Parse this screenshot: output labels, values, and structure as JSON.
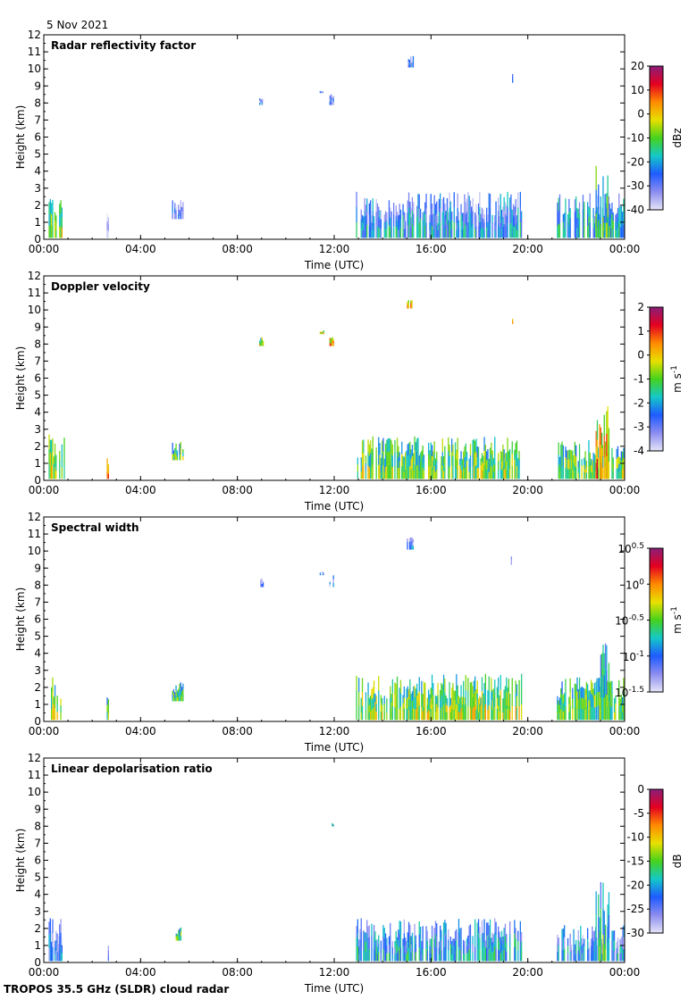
{
  "date": "5 Nov 2021",
  "footer": "TROPOS 35.5 GHz (SLDR) cloud radar",
  "colors": {
    "colormap": [
      "#8a1e7a",
      "#e40020",
      "#ff8a00",
      "#e8e000",
      "#46d21c",
      "#14c8c8",
      "#1e5cff",
      "#8c8cf0",
      "#e4e4f8"
    ],
    "clear_air": "#cfcfd8",
    "frame": "#000000"
  },
  "chart_data": [
    {
      "type": "heatmap",
      "title": "Radar reflectivity factor",
      "xlabel": "Time (UTC)",
      "ylabel": "Height (km)",
      "xticks": [
        "00:00",
        "04:00",
        "08:00",
        "12:00",
        "16:00",
        "20:00",
        "00:00"
      ],
      "xlim_hours": [
        0,
        24
      ],
      "ylim": [
        0,
        12
      ],
      "yticks": [
        0,
        1,
        2,
        3,
        4,
        5,
        6,
        7,
        8,
        9,
        10,
        11,
        12
      ],
      "colorbar": {
        "unit": "dBz",
        "ticks": [
          "20",
          "10",
          "0",
          "-10",
          "-20",
          "-30",
          "-40"
        ],
        "range": [
          -40,
          20
        ]
      },
      "features": [
        {
          "t0": 0.2,
          "t1": 0.8,
          "h0": 0.1,
          "h1": 2.6,
          "value": 0.45
        },
        {
          "t0": 2.6,
          "t1": 2.7,
          "h0": 0.1,
          "h1": 1.6,
          "value": 0.9
        },
        {
          "t0": 5.3,
          "t1": 5.8,
          "h0": 1.2,
          "h1": 2.3,
          "value": 0.8
        },
        {
          "t0": 8.9,
          "t1": 9.1,
          "h0": 7.9,
          "h1": 8.5,
          "value": 0.85
        },
        {
          "t0": 11.4,
          "t1": 11.6,
          "h0": 8.6,
          "h1": 8.8,
          "value": 0.85
        },
        {
          "t0": 11.8,
          "t1": 12.0,
          "h0": 7.9,
          "h1": 8.6,
          "value": 0.82
        },
        {
          "t0": 12.9,
          "t1": 19.8,
          "h0": 0.1,
          "h1": 2.8,
          "value": 0.72
        },
        {
          "t0": 15.0,
          "t1": 15.3,
          "h0": 10.1,
          "h1": 10.8,
          "value": 0.82
        },
        {
          "t0": 19.3,
          "t1": 19.4,
          "h0": 9.2,
          "h1": 9.7,
          "value": 0.9
        },
        {
          "t0": 21.2,
          "t1": 24.0,
          "h0": 0.1,
          "h1": 2.8,
          "value": 0.65
        },
        {
          "t0": 22.8,
          "t1": 23.4,
          "h0": 0.1,
          "h1": 4.9,
          "value": 0.55
        }
      ]
    },
    {
      "type": "heatmap",
      "title": "Doppler velocity",
      "xlabel": "Time (UTC)",
      "ylabel": "Height (km)",
      "xticks": [
        "00:00",
        "04:00",
        "08:00",
        "12:00",
        "16:00",
        "20:00",
        "00:00"
      ],
      "xlim_hours": [
        0,
        24
      ],
      "ylim": [
        0,
        12
      ],
      "yticks": [
        0,
        1,
        2,
        3,
        4,
        5,
        6,
        7,
        8,
        9,
        10,
        11,
        12
      ],
      "colorbar": {
        "unit": "m s-1",
        "ticks": [
          "2",
          "1",
          "0",
          "-1",
          "-2",
          "-3",
          "-4"
        ],
        "range": [
          -4,
          2
        ]
      },
      "features": [
        {
          "t0": 0.2,
          "t1": 0.9,
          "h0": 0.1,
          "h1": 2.8,
          "value": 0.45
        },
        {
          "t0": 2.6,
          "t1": 2.7,
          "h0": 0.1,
          "h1": 1.6,
          "value": 0.3
        },
        {
          "t0": 5.3,
          "t1": 5.8,
          "h0": 1.2,
          "h1": 2.3,
          "value": 0.55
        },
        {
          "t0": 8.9,
          "t1": 9.1,
          "h0": 7.9,
          "h1": 8.5,
          "value": 0.45
        },
        {
          "t0": 11.4,
          "t1": 11.6,
          "h0": 8.6,
          "h1": 8.8,
          "value": 0.4
        },
        {
          "t0": 11.8,
          "t1": 12.0,
          "h0": 7.9,
          "h1": 8.6,
          "value": 0.3
        },
        {
          "t0": 12.9,
          "t1": 19.8,
          "h0": 0.1,
          "h1": 2.6,
          "value": 0.5
        },
        {
          "t0": 15.0,
          "t1": 15.3,
          "h0": 10.1,
          "h1": 10.8,
          "value": 0.25
        },
        {
          "t0": 19.3,
          "t1": 19.4,
          "h0": 9.2,
          "h1": 9.7,
          "value": 0.25
        },
        {
          "t0": 21.2,
          "t1": 24.0,
          "h0": 0.1,
          "h1": 2.4,
          "value": 0.5
        },
        {
          "t0": 22.8,
          "t1": 23.4,
          "h0": 0.1,
          "h1": 4.9,
          "value": 0.3
        }
      ]
    },
    {
      "type": "heatmap",
      "title": "Spectral width",
      "xlabel": "Time (UTC)",
      "ylabel": "Height (km)",
      "xticks": [
        "00:00",
        "04:00",
        "08:00",
        "12:00",
        "16:00",
        "20:00",
        "00:00"
      ],
      "xlim_hours": [
        0,
        24
      ],
      "ylim": [
        0,
        12
      ],
      "yticks": [
        0,
        1,
        2,
        3,
        4,
        5,
        6,
        7,
        8,
        9,
        10,
        11,
        12
      ],
      "colorbar": {
        "unit": "m s-1",
        "scale": "log",
        "ticks": [
          {
            "base": "10",
            "exp": "0.5"
          },
          {
            "base": "10",
            "exp": "0"
          },
          {
            "base": "10",
            "exp": "-0.5"
          },
          {
            "base": "10",
            "exp": "-1"
          },
          {
            "base": "10",
            "exp": "-1.5"
          }
        ],
        "range_log10": [
          -1.5,
          0.5
        ]
      },
      "features": [
        {
          "t0": 0.2,
          "t1": 0.8,
          "h0": 0.1,
          "h1": 2.8,
          "value": 0.45
        },
        {
          "t0": 2.6,
          "t1": 2.7,
          "h0": 0.1,
          "h1": 1.6,
          "value": 0.55
        },
        {
          "t0": 5.3,
          "t1": 5.8,
          "h0": 1.2,
          "h1": 2.3,
          "value": 0.55
        },
        {
          "t0": 8.9,
          "t1": 9.1,
          "h0": 7.9,
          "h1": 8.5,
          "value": 0.82
        },
        {
          "t0": 11.4,
          "t1": 11.6,
          "h0": 8.6,
          "h1": 8.8,
          "value": 0.8
        },
        {
          "t0": 11.8,
          "t1": 12.0,
          "h0": 7.9,
          "h1": 8.6,
          "value": 0.82
        },
        {
          "t0": 12.9,
          "t1": 19.8,
          "h0": 0.1,
          "h1": 2.8,
          "value": 0.45
        },
        {
          "t0": 15.0,
          "t1": 15.3,
          "h0": 10.1,
          "h1": 10.8,
          "value": 0.8
        },
        {
          "t0": 19.3,
          "t1": 19.4,
          "h0": 9.2,
          "h1": 9.7,
          "value": 0.82
        },
        {
          "t0": 21.2,
          "t1": 24.0,
          "h0": 0.1,
          "h1": 2.6,
          "value": 0.5
        },
        {
          "t0": 22.8,
          "t1": 23.4,
          "h0": 0.1,
          "h1": 4.9,
          "value": 0.6
        }
      ]
    },
    {
      "type": "heatmap",
      "title": "Linear depolarisation ratio",
      "xlabel": "Time (UTC)",
      "ylabel": "Height (km)",
      "xticks": [
        "00:00",
        "04:00",
        "08:00",
        "12:00",
        "16:00",
        "20:00",
        "00:00"
      ],
      "xlim_hours": [
        0,
        24
      ],
      "ylim": [
        0,
        12
      ],
      "yticks": [
        0,
        1,
        2,
        3,
        4,
        5,
        6,
        7,
        8,
        9,
        10,
        11,
        12
      ],
      "colorbar": {
        "unit": "dB",
        "ticks": [
          "0",
          "-5",
          "-10",
          "-15",
          "-20",
          "-25",
          "-30"
        ],
        "range": [
          -30,
          0
        ]
      },
      "features": [
        {
          "t0": 0.2,
          "t1": 0.8,
          "h0": 0.1,
          "h1": 2.6,
          "value": 0.78
        },
        {
          "t0": 2.6,
          "t1": 2.7,
          "h0": 0.1,
          "h1": 1.4,
          "value": 0.8
        },
        {
          "t0": 5.4,
          "t1": 5.7,
          "h0": 1.3,
          "h1": 2.1,
          "value": 0.55
        },
        {
          "t0": 11.9,
          "t1": 12.0,
          "h0": 8.0,
          "h1": 8.2,
          "value": 0.6
        },
        {
          "t0": 12.9,
          "t1": 19.8,
          "h0": 0.1,
          "h1": 2.6,
          "value": 0.68
        },
        {
          "t0": 21.2,
          "t1": 24.0,
          "h0": 0.1,
          "h1": 2.2,
          "value": 0.72
        },
        {
          "t0": 22.8,
          "t1": 23.4,
          "h0": 0.1,
          "h1": 4.8,
          "value": 0.6
        }
      ]
    }
  ]
}
